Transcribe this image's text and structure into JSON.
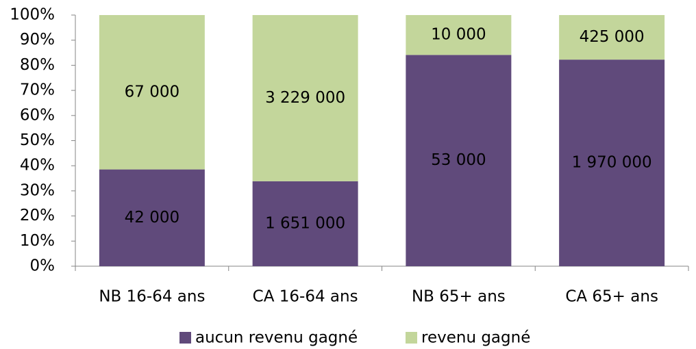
{
  "chart_data": {
    "type": "bar",
    "stacking": "percent",
    "categories": [
      "NB 16-64 ans",
      "CA 16-64 ans",
      "NB 65+ ans",
      "CA 65+ ans"
    ],
    "series": [
      {
        "name": "aucun revenu gagné",
        "color": "#604a7b",
        "values": [
          42000,
          1651000,
          53000,
          1970000
        ],
        "value_labels": [
          "42 000",
          "1 651 000",
          "53 000",
          "1 970 000"
        ]
      },
      {
        "name": "revenu gagné",
        "color": "#c3d69b",
        "values": [
          67000,
          3229000,
          10000,
          425000
        ],
        "value_labels": [
          "67 000",
          "3 229 000",
          "10 000",
          "425 000"
        ]
      }
    ],
    "ylim": [
      0,
      100
    ],
    "yticks": [
      {
        "value": 0,
        "label": "0%"
      },
      {
        "value": 10,
        "label": "10%"
      },
      {
        "value": 20,
        "label": "20%"
      },
      {
        "value": 30,
        "label": "30%"
      },
      {
        "value": 40,
        "label": "40%"
      },
      {
        "value": 50,
        "label": "50%"
      },
      {
        "value": 60,
        "label": "60%"
      },
      {
        "value": 70,
        "label": "70%"
      },
      {
        "value": 80,
        "label": "80%"
      },
      {
        "value": 90,
        "label": "90%"
      },
      {
        "value": 100,
        "label": "100%"
      }
    ],
    "grid": false,
    "legend": "bottom"
  }
}
